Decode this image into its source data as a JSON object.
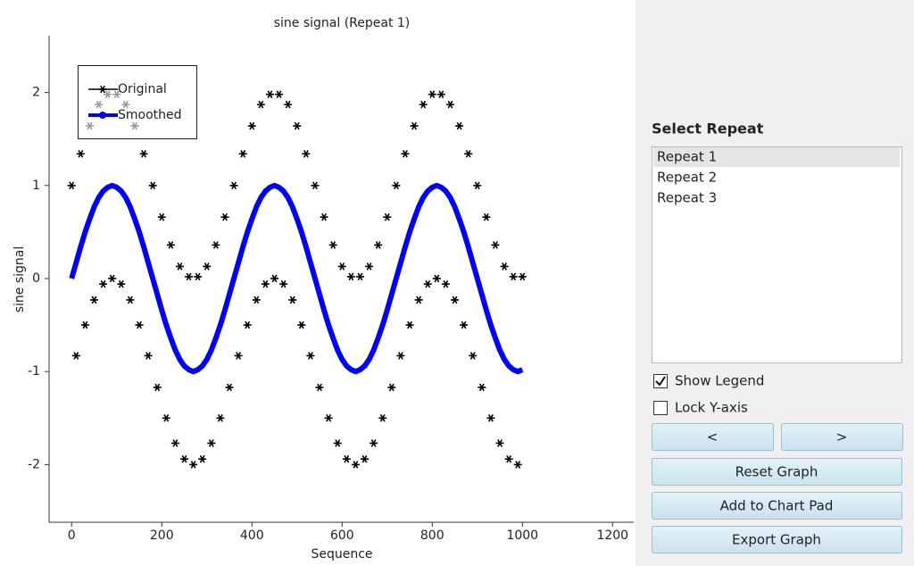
{
  "chart_data": {
    "type": "line",
    "title": "sine signal (Repeat 1)",
    "x_label": "Sequence",
    "y_label": "sine signal",
    "x": [
      0,
      10,
      20,
      30,
      40,
      50,
      60,
      70,
      80,
      90,
      100,
      110,
      120,
      130,
      140,
      150,
      160,
      170,
      180,
      190,
      200,
      210,
      220,
      230,
      240,
      250,
      260,
      270,
      280,
      290,
      300,
      310,
      320,
      330,
      340,
      350,
      360,
      370,
      380,
      390,
      400,
      410,
      420,
      430,
      440,
      450,
      460,
      470,
      480,
      490,
      500,
      510,
      520,
      530,
      540,
      550,
      560,
      570,
      580,
      590,
      600,
      610,
      620,
      630,
      640,
      650,
      660,
      670,
      680,
      690,
      700,
      710,
      720,
      730,
      740,
      750,
      760,
      770,
      780,
      790,
      800,
      810,
      820,
      830,
      840,
      850,
      860,
      870,
      880,
      890,
      900,
      910,
      920,
      930,
      940,
      950,
      960,
      970,
      980,
      990,
      1000
    ],
    "series": [
      {
        "name": "Original",
        "color": "#000000",
        "values": [
          1,
          -0.83,
          1.34,
          -0.5,
          1.64,
          -0.23,
          1.87,
          -0.06,
          1.98,
          0,
          1.98,
          -0.06,
          1.87,
          -0.23,
          1.64,
          -0.5,
          1.34,
          -0.83,
          1,
          -1.17,
          0.66,
          -1.5,
          0.36,
          -1.77,
          0.13,
          -1.94,
          0.02,
          -2,
          0.02,
          -1.94,
          0.13,
          -1.77,
          0.36,
          -1.5,
          0.66,
          -1.17,
          1,
          -0.83,
          1.34,
          -0.5,
          1.64,
          -0.23,
          1.87,
          -0.06,
          1.98,
          0,
          1.98,
          -0.06,
          1.87,
          -0.23,
          1.64,
          -0.5,
          1.34,
          -0.83,
          1,
          -1.17,
          0.66,
          -1.5,
          0.36,
          -1.77,
          0.13,
          -1.94,
          0.02,
          -2,
          0.02,
          -1.94,
          0.13,
          -1.77,
          0.36,
          -1.5,
          0.66,
          -1.17,
          1,
          -0.83,
          1.34,
          -0.5,
          1.64,
          -0.23,
          1.87,
          -0.06,
          1.98,
          0,
          1.98,
          -0.06,
          1.87,
          -0.23,
          1.64,
          -0.5,
          1.34,
          -0.83,
          1,
          -1.17,
          0.66,
          -1.5,
          0.36,
          -1.77,
          0.13,
          -1.94,
          0.02,
          -2,
          0.02
        ]
      },
      {
        "name": "Smoothed",
        "color": "#0000ff",
        "values": [
          0,
          0.17,
          0.34,
          0.5,
          0.64,
          0.77,
          0.87,
          0.94,
          0.98,
          1,
          0.98,
          0.94,
          0.87,
          0.77,
          0.64,
          0.5,
          0.34,
          0.17,
          0,
          -0.17,
          -0.34,
          -0.5,
          -0.64,
          -0.77,
          -0.87,
          -0.94,
          -0.98,
          -1,
          -0.98,
          -0.94,
          -0.87,
          -0.77,
          -0.64,
          -0.5,
          -0.34,
          -0.17,
          0,
          0.17,
          0.34,
          0.5,
          0.64,
          0.77,
          0.87,
          0.94,
          0.98,
          1,
          0.98,
          0.94,
          0.87,
          0.77,
          0.64,
          0.5,
          0.34,
          0.17,
          0,
          -0.17,
          -0.34,
          -0.5,
          -0.64,
          -0.77,
          -0.87,
          -0.94,
          -0.98,
          -1,
          -0.98,
          -0.94,
          -0.87,
          -0.77,
          -0.64,
          -0.5,
          -0.34,
          -0.17,
          0,
          0.17,
          0.34,
          0.5,
          0.64,
          0.77,
          0.87,
          0.94,
          0.98,
          1,
          0.98,
          0.94,
          0.87,
          0.77,
          0.64,
          0.5,
          0.34,
          0.17,
          0,
          -0.17,
          -0.34,
          -0.5,
          -0.64,
          -0.77,
          -0.87,
          -0.94,
          -0.98,
          -1,
          -0.98
        ]
      }
    ],
    "xlim": [
      -50,
      1247
    ],
    "ylim": [
      -2.62,
      2.61
    ],
    "xticks": [
      0,
      200,
      400,
      600,
      800,
      1000,
      1200
    ],
    "yticks": [
      -2,
      -1,
      0,
      1,
      2
    ],
    "legend": "upper left"
  },
  "panel": {
    "title": "Select Repeat",
    "items": [
      "Repeat 1",
      "Repeat 2",
      "Repeat 3"
    ],
    "selected": 0,
    "checkboxes": [
      {
        "label": "Show Legend",
        "checked": true
      },
      {
        "label": "Lock Y-axis",
        "checked": false
      }
    ],
    "buttons": [
      "<",
      ">",
      "Reset Graph",
      "Add to Chart Pad",
      "Export Graph"
    ]
  }
}
